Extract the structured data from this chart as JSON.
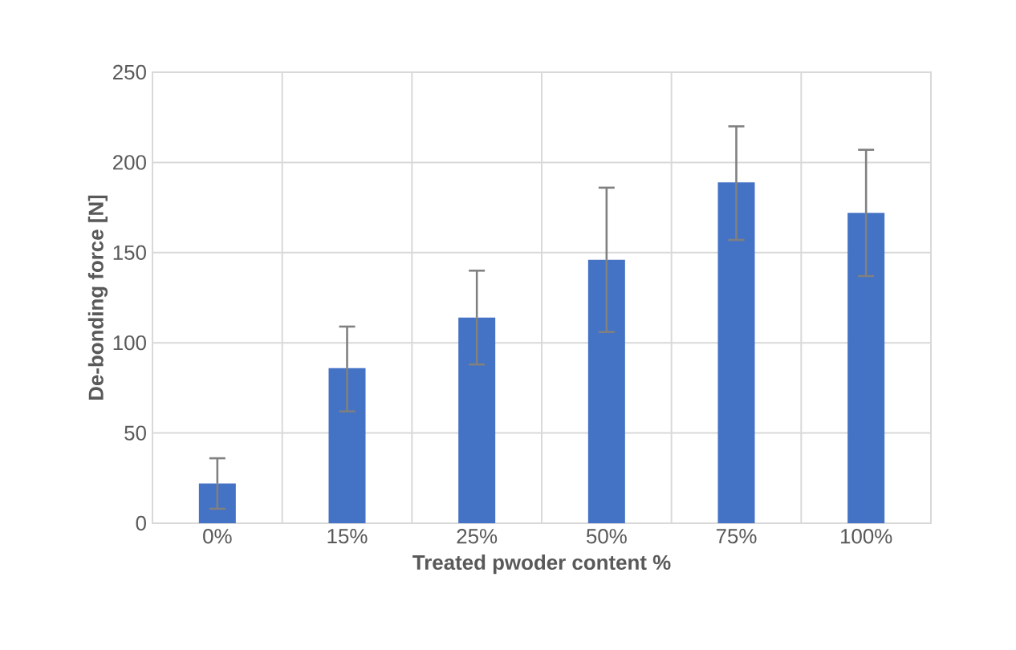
{
  "chart_data": {
    "type": "bar",
    "xlabel": "Treated pwoder content %",
    "ylabel": "De-bonding  force [N]",
    "categories": [
      "0%",
      "15%",
      "25%",
      "50%",
      "75%",
      "100%"
    ],
    "values": [
      22,
      86,
      114,
      146,
      189,
      172
    ],
    "errors": [
      [
        8,
        36
      ],
      [
        62,
        109
      ],
      [
        88,
        140
      ],
      [
        106,
        186
      ],
      [
        157,
        220
      ],
      [
        137,
        207
      ]
    ],
    "color": "#4472c4",
    "ylim": [
      0,
      250
    ],
    "yticks": [
      0,
      50,
      100,
      150,
      200,
      250
    ],
    "grid": true
  }
}
